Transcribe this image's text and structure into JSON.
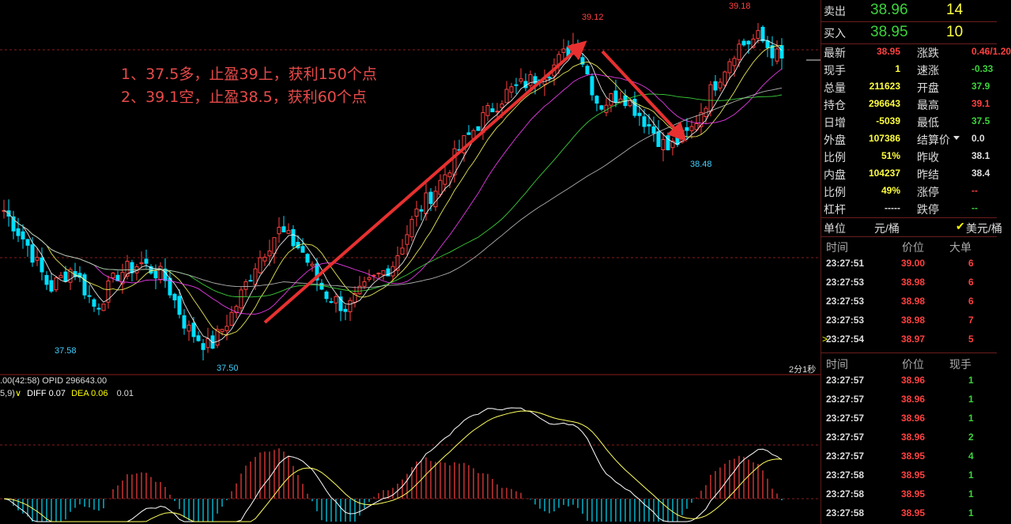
{
  "annotations": {
    "line1": "1、37.5多，止盈39上，获利150个点",
    "line2": "2、39.1空，止盈38.5，获利60个点"
  },
  "price_labels": {
    "high1": "39.12",
    "high2": "39.18",
    "low1": "37.58",
    "low2": "37.50",
    "low3": "38.48"
  },
  "indicator": {
    "opid_text": ".00(42:58)  OPID 296643.00",
    "macd_prefix": "5,9)",
    "diff_label": "DIFF 0.07",
    "dea_label": "DEA 0.06",
    "macd_value": "0.01",
    "period": "2分1秒"
  },
  "quote": {
    "sell": {
      "label": "卖出",
      "price": "38.96",
      "qty": "14"
    },
    "buy": {
      "label": "买入",
      "price": "38.95",
      "qty": "10"
    },
    "stats": [
      {
        "l1": "最新",
        "v1": "38.95",
        "c1": "red",
        "l2": "涨跌",
        "v2": "0.46/1.20",
        "c2": "red"
      },
      {
        "l1": "现手",
        "v1": "1",
        "c1": "yellow",
        "l2": "速涨",
        "v2": "-0.33",
        "c2": "green"
      },
      {
        "l1": "总量",
        "v1": "211623",
        "c1": "yellow",
        "l2": "开盘",
        "v2": "37.9",
        "c2": "green"
      },
      {
        "l1": "持仓",
        "v1": "296643",
        "c1": "yellow",
        "l2": "最高",
        "v2": "39.1",
        "c2": "red"
      },
      {
        "l1": "日增",
        "v1": "-5039",
        "c1": "yellow",
        "l2": "最低",
        "v2": "37.5",
        "c2": "green"
      },
      {
        "l1": "外盘",
        "v1": "107386",
        "c1": "yellow",
        "l2": "结算价",
        "v2": "0.0",
        "c2": "white"
      },
      {
        "l1": "比例",
        "v1": "51%",
        "c1": "yellow",
        "l2": "昨收",
        "v2": "38.1",
        "c2": "white"
      },
      {
        "l1": "内盘",
        "v1": "104237",
        "c1": "yellow",
        "l2": "昨结",
        "v2": "38.4",
        "c2": "white"
      },
      {
        "l1": "比例",
        "v1": "49%",
        "c1": "yellow",
        "l2": "涨停",
        "v2": "--",
        "c2": "red"
      },
      {
        "l1": "杠杆",
        "v1": "-----",
        "c1": "white",
        "l2": "跌停",
        "v2": "--",
        "c2": "green"
      }
    ],
    "unit": {
      "label": "单位",
      "value": "元/桶",
      "alt": "美元/桶"
    }
  },
  "ticks1": {
    "headers": [
      "时间",
      "价位",
      "大单"
    ],
    "rows": [
      {
        "t": "23:27:51",
        "p": "39.00",
        "q": "6"
      },
      {
        "t": "23:27:53",
        "p": "38.98",
        "q": "6"
      },
      {
        "t": "23:27:53",
        "p": "38.98",
        "q": "6"
      },
      {
        "t": "23:27:53",
        "p": "38.98",
        "q": "7"
      },
      {
        "t": "23:27:54",
        "p": "38.97",
        "q": "5"
      }
    ]
  },
  "ticks2": {
    "headers": [
      "时间",
      "价位",
      "现手"
    ],
    "rows": [
      {
        "t": "23:27:57",
        "p": "38.96",
        "q": "1"
      },
      {
        "t": "23:27:57",
        "p": "38.96",
        "q": "1"
      },
      {
        "t": "23:27:57",
        "p": "38.96",
        "q": "1"
      },
      {
        "t": "23:27:57",
        "p": "38.96",
        "q": "2"
      },
      {
        "t": "23:27:57",
        "p": "38.95",
        "q": "4"
      },
      {
        "t": "23:27:58",
        "p": "38.95",
        "q": "1"
      },
      {
        "t": "23:27:58",
        "p": "38.95",
        "q": "1"
      },
      {
        "t": "23:27:58",
        "p": "38.95",
        "q": "1"
      }
    ]
  },
  "colors": {
    "up": "#ff4040",
    "down": "#00e0ff",
    "ma1": "#ffffff",
    "ma2": "#ffff60",
    "ma3": "#ff40ff",
    "ma4": "#40e040",
    "ma5": "#c0c0c0",
    "arrow": "#e83030"
  },
  "chart_data": {
    "type": "candlestick",
    "ylim": [
      37.4,
      39.25
    ],
    "key_points": [
      {
        "label": "37.58",
        "value": 37.58
      },
      {
        "label": "37.50",
        "value": 37.5
      },
      {
        "label": "39.12",
        "value": 39.12
      },
      {
        "label": "38.48",
        "value": 38.48
      },
      {
        "label": "39.18",
        "value": 39.18
      }
    ],
    "close_path": [
      38.22,
      38.05,
      37.82,
      37.93,
      37.72,
      37.9,
      37.95,
      37.88,
      37.62,
      37.52,
      37.7,
      37.95,
      38.12,
      38.02,
      37.8,
      37.72,
      37.85,
      37.95,
      38.2,
      38.35,
      38.55,
      38.7,
      38.82,
      38.88,
      38.95,
      39.08,
      38.75,
      38.82,
      38.68,
      38.53,
      38.62,
      38.85,
      39.05,
      39.1,
      38.98
    ]
  }
}
